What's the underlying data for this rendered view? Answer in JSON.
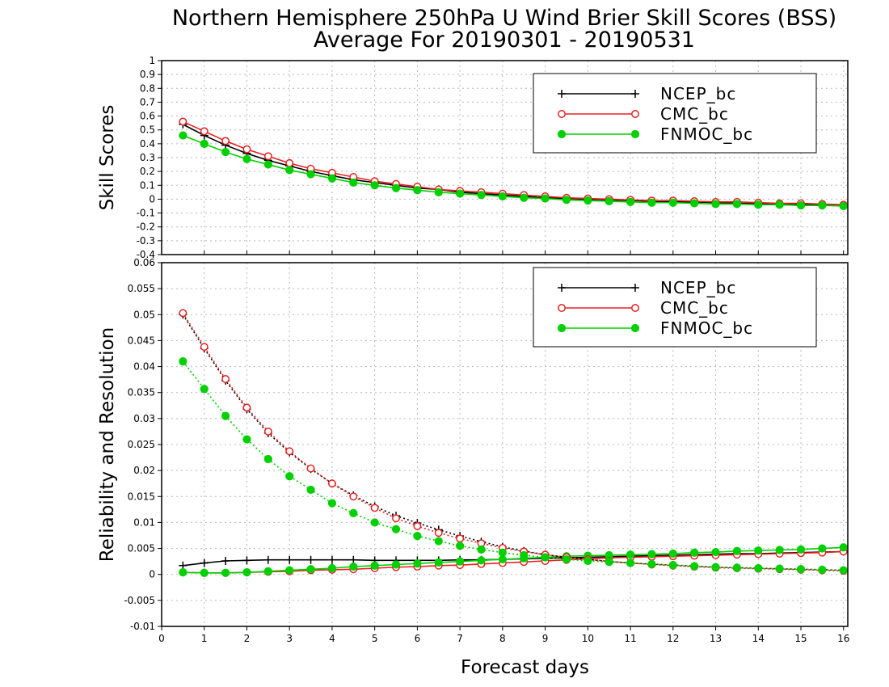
{
  "title": {
    "line1": "Northern Hemisphere 250hPa U Wind Brier Skill Scores (BSS)",
    "line2": "Average For 20190301 - 20190531"
  },
  "colors": {
    "NCEP_bc": "#000000",
    "CMC_bc": "#e82020",
    "FNMOC_bc": "#00d000",
    "grid": "#b8b8b8"
  },
  "chart_data": [
    {
      "type": "line",
      "panel": "top",
      "ylabel": "Skill Scores",
      "xlabel": "",
      "xlim": [
        0,
        16.1
      ],
      "ylim": [
        -0.4,
        1
      ],
      "y_ticks": [
        "-0.4",
        "-0.3",
        "-0.2",
        "-0.1",
        "0",
        "0.1",
        "0.2",
        "0.3",
        "0.4",
        "0.5",
        "0.6",
        "0.7",
        "0.8",
        "0.9",
        "1"
      ],
      "grid": true,
      "legend": {
        "placement": "top-right",
        "entries": [
          "NCEP_bc",
          "CMC_bc",
          "FNMOC_bc"
        ]
      },
      "x": [
        0.5,
        1,
        1.5,
        2,
        2.5,
        3,
        3.5,
        4,
        4.5,
        5,
        5.5,
        6,
        6.5,
        7,
        7.5,
        8,
        8.5,
        9,
        9.5,
        10,
        10.5,
        11,
        11.5,
        12,
        12.5,
        13,
        13.5,
        14,
        14.5,
        15,
        15.5,
        16
      ],
      "series": [
        {
          "name": "NCEP_bc",
          "style": "solid",
          "marker": "plus",
          "values": [
            0.54,
            0.46,
            0.39,
            0.33,
            0.28,
            0.24,
            0.2,
            0.17,
            0.14,
            0.12,
            0.1,
            0.08,
            0.07,
            0.05,
            0.04,
            0.03,
            0.02,
            0.01,
            0.005,
            0,
            -0.005,
            -0.01,
            -0.015,
            -0.02,
            -0.02,
            -0.025,
            -0.03,
            -0.03,
            -0.035,
            -0.04,
            -0.04,
            -0.045
          ]
        },
        {
          "name": "CMC_bc",
          "style": "solid",
          "marker": "open-circle",
          "values": [
            0.56,
            0.49,
            0.42,
            0.36,
            0.31,
            0.26,
            0.22,
            0.19,
            0.16,
            0.13,
            0.11,
            0.09,
            0.07,
            0.06,
            0.05,
            0.04,
            0.03,
            0.02,
            0.01,
            0.005,
            0,
            -0.005,
            -0.01,
            -0.01,
            -0.015,
            -0.02,
            -0.02,
            -0.025,
            -0.03,
            -0.03,
            -0.035,
            -0.04
          ]
        },
        {
          "name": "FNMOC_bc",
          "style": "solid",
          "marker": "filled-circle",
          "values": [
            0.46,
            0.4,
            0.34,
            0.29,
            0.25,
            0.21,
            0.18,
            0.15,
            0.12,
            0.1,
            0.08,
            0.065,
            0.05,
            0.04,
            0.03,
            0.02,
            0.01,
            0.005,
            -0.005,
            -0.01,
            -0.015,
            -0.02,
            -0.025,
            -0.025,
            -0.03,
            -0.035,
            -0.035,
            -0.04,
            -0.04,
            -0.045,
            -0.045,
            -0.05
          ]
        }
      ]
    },
    {
      "type": "line",
      "panel": "bottom",
      "ylabel": "Reliability and Resolution",
      "xlabel": "Forecast days",
      "xlim": [
        0,
        16.1
      ],
      "ylim": [
        -0.01,
        0.06
      ],
      "x_ticks": [
        "0",
        "1",
        "2",
        "3",
        "4",
        "5",
        "6",
        "7",
        "8",
        "9",
        "10",
        "11",
        "12",
        "13",
        "14",
        "15",
        "16"
      ],
      "y_ticks": [
        "-0.01",
        "-0.005",
        "0",
        "0.005",
        "0.01",
        "0.015",
        "0.02",
        "0.025",
        "0.03",
        "0.035",
        "0.04",
        "0.045",
        "0.05",
        "0.055",
        "0.06"
      ],
      "grid": true,
      "legend": {
        "placement": "top-right",
        "entries": [
          "NCEP_bc",
          "CMC_bc",
          "FNMOC_bc"
        ]
      },
      "x": [
        0.5,
        1,
        1.5,
        2,
        2.5,
        3,
        3.5,
        4,
        4.5,
        5,
        5.5,
        6,
        6.5,
        7,
        7.5,
        8,
        8.5,
        9,
        9.5,
        10,
        10.5,
        11,
        11.5,
        12,
        12.5,
        13,
        13.5,
        14,
        14.5,
        15,
        15.5,
        16
      ],
      "series": [
        {
          "name": "NCEP_bc",
          "role": "reliability",
          "style": "solid",
          "marker": "plus",
          "values": [
            0.0017,
            0.0022,
            0.0026,
            0.0027,
            0.0028,
            0.0028,
            0.0028,
            0.0028,
            0.0028,
            0.0027,
            0.0027,
            0.0027,
            0.0027,
            0.0028,
            0.0028,
            0.0029,
            0.003,
            0.0031,
            0.0032,
            0.0033,
            0.0034,
            0.0035,
            0.0036,
            0.0037,
            0.0038,
            0.0039,
            0.004,
            0.004,
            0.0041,
            0.0042,
            0.0043,
            0.0044
          ]
        },
        {
          "name": "CMC_bc",
          "role": "reliability",
          "style": "solid",
          "marker": "open-circle",
          "values": [
            0.0004,
            0.0003,
            0.0003,
            0.0004,
            0.0005,
            0.0006,
            0.0008,
            0.0009,
            0.001,
            0.0012,
            0.0014,
            0.0015,
            0.0017,
            0.0018,
            0.002,
            0.0022,
            0.0024,
            0.0026,
            0.0028,
            0.003,
            0.0032,
            0.0033,
            0.0034,
            0.0035,
            0.0036,
            0.0037,
            0.0038,
            0.0039,
            0.004,
            0.0041,
            0.0042,
            0.0044
          ]
        },
        {
          "name": "FNMOC_bc",
          "role": "reliability",
          "style": "solid",
          "marker": "filled-circle",
          "values": [
            0.0004,
            0.0003,
            0.0003,
            0.0004,
            0.0006,
            0.0008,
            0.001,
            0.0012,
            0.0015,
            0.0017,
            0.0019,
            0.0021,
            0.0023,
            0.0025,
            0.0027,
            0.0029,
            0.0031,
            0.0033,
            0.0035,
            0.0036,
            0.0037,
            0.0038,
            0.0039,
            0.004,
            0.0042,
            0.0043,
            0.0045,
            0.0046,
            0.0047,
            0.0048,
            0.005,
            0.0052
          ]
        },
        {
          "name": "NCEP_bc",
          "role": "resolution",
          "style": "dotted",
          "marker": "plus",
          "values": [
            0.05,
            0.0435,
            0.0373,
            0.0318,
            0.0272,
            0.0235,
            0.0203,
            0.0175,
            0.0152,
            0.0131,
            0.0113,
            0.0099,
            0.0086,
            0.0074,
            0.0063,
            0.0053,
            0.0045,
            0.0038,
            0.0033,
            0.0029,
            0.0025,
            0.0022,
            0.002,
            0.0018,
            0.0016,
            0.0014,
            0.0013,
            0.0012,
            0.0011,
            0.001,
            0.0009,
            0.0008
          ]
        },
        {
          "name": "CMC_bc",
          "role": "resolution",
          "style": "dotted",
          "marker": "open-circle",
          "values": [
            0.0503,
            0.0438,
            0.0376,
            0.0321,
            0.0275,
            0.0237,
            0.0204,
            0.0175,
            0.015,
            0.0128,
            0.0108,
            0.0093,
            0.008,
            0.0069,
            0.006,
            0.0051,
            0.0044,
            0.0038,
            0.0033,
            0.0029,
            0.0025,
            0.0022,
            0.0019,
            0.0017,
            0.0015,
            0.0013,
            0.0012,
            0.0011,
            0.001,
            0.0009,
            0.0008,
            0.0007
          ]
        },
        {
          "name": "FNMOC_bc",
          "role": "resolution",
          "style": "dotted",
          "marker": "filled-circle",
          "values": [
            0.041,
            0.0357,
            0.0305,
            0.026,
            0.0222,
            0.0189,
            0.0163,
            0.0137,
            0.0118,
            0.01,
            0.0087,
            0.0074,
            0.0064,
            0.0055,
            0.0048,
            0.0042,
            0.0037,
            0.0033,
            0.0029,
            0.0026,
            0.0024,
            0.0022,
            0.002,
            0.0018,
            0.0016,
            0.0014,
            0.0013,
            0.0012,
            0.0011,
            0.001,
            0.0009,
            0.0008
          ]
        }
      ]
    }
  ]
}
